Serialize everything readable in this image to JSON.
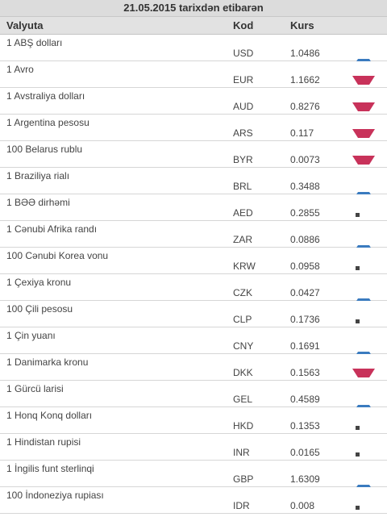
{
  "title": "21.05.2015 tarixdən etibarən",
  "columns": {
    "currency": "Valyuta",
    "code": "Kod",
    "rate": "Kurs"
  },
  "rows": [
    {
      "name": "1 ABŞ dolları",
      "code": "USD",
      "rate": "1.0486",
      "trend": "up"
    },
    {
      "name": "1 Avro",
      "code": "EUR",
      "rate": "1.1662",
      "trend": "down"
    },
    {
      "name": "1 Avstraliya dolları",
      "code": "AUD",
      "rate": "0.8276",
      "trend": "down"
    },
    {
      "name": "1 Argentina pesosu",
      "code": "ARS",
      "rate": "0.117",
      "trend": "down"
    },
    {
      "name": "100 Belarus rublu",
      "code": "BYR",
      "rate": "0.0073",
      "trend": "down"
    },
    {
      "name": "1 Braziliya rialı",
      "code": "BRL",
      "rate": "0.3488",
      "trend": "up"
    },
    {
      "name": "1 BƏƏ dirhəmi",
      "code": "AED",
      "rate": "0.2855",
      "trend": "flat"
    },
    {
      "name": "1 Cənubi Afrika randı",
      "code": "ZAR",
      "rate": "0.0886",
      "trend": "up"
    },
    {
      "name": "100 Cənubi Korea vonu",
      "code": "KRW",
      "rate": "0.0958",
      "trend": "flat"
    },
    {
      "name": "1 Çexiya kronu",
      "code": "CZK",
      "rate": "0.0427",
      "trend": "up"
    },
    {
      "name": "100 Çili pesosu",
      "code": "CLP",
      "rate": "0.1736",
      "trend": "flat"
    },
    {
      "name": "1 Çin yuanı",
      "code": "CNY",
      "rate": "0.1691",
      "trend": "up"
    },
    {
      "name": "1 Danimarka kronu",
      "code": "DKK",
      "rate": "0.1563",
      "trend": "down"
    },
    {
      "name": "1 Gürcü larisi",
      "code": "GEL",
      "rate": "0.4589",
      "trend": "up"
    },
    {
      "name": "1 Honq Konq dolları",
      "code": "HKD",
      "rate": "0.1353",
      "trend": "flat"
    },
    {
      "name": "1 Hindistan rupisi",
      "code": "INR",
      "rate": "0.0165",
      "trend": "flat"
    },
    {
      "name": "1 İngilis funt sterlinqi",
      "code": "GBP",
      "rate": "1.6309",
      "trend": "up"
    },
    {
      "name": "100 İndoneziya rupiası",
      "code": "IDR",
      "rate": "0.008",
      "trend": "flat"
    }
  ],
  "colors": {
    "up": "#3a7bbf",
    "down": "#c8325a",
    "flat": "#444444"
  }
}
